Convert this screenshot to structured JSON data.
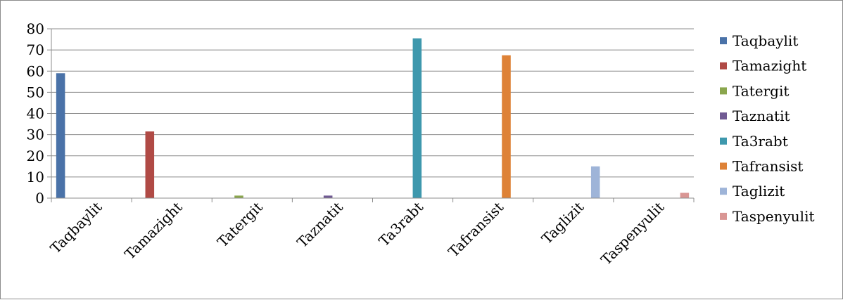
{
  "chart_data": {
    "type": "bar",
    "categories": [
      "Taqbaylit",
      "Tamazight",
      "Tatergit",
      "Taznatit",
      "Ta3rabt",
      "Tafransist",
      "Taglizit",
      "Taspenyulit"
    ],
    "series": [
      {
        "name": "Taqbaylit",
        "color": "#4a72a8",
        "values": [
          59,
          0,
          0,
          0,
          0,
          0,
          0,
          0
        ]
      },
      {
        "name": "Tamazight",
        "color": "#b04a45",
        "values": [
          0,
          31.5,
          0,
          0,
          0,
          0,
          0,
          0
        ]
      },
      {
        "name": "Tatergit",
        "color": "#8aa64d",
        "values": [
          0,
          0,
          1.2,
          0,
          0,
          0,
          0,
          0
        ]
      },
      {
        "name": "Taznatit",
        "color": "#705a93",
        "values": [
          0,
          0,
          0,
          1.2,
          0,
          0,
          0,
          0
        ]
      },
      {
        "name": "Ta3rabt",
        "color": "#3e98ad",
        "values": [
          0,
          0,
          0,
          0,
          75.5,
          0,
          0,
          0
        ]
      },
      {
        "name": "Tafransist",
        "color": "#de8237",
        "values": [
          0,
          0,
          0,
          0,
          0,
          67.5,
          0,
          0
        ]
      },
      {
        "name": "Taglizit",
        "color": "#9eb4d8",
        "values": [
          0,
          0,
          0,
          0,
          0,
          0,
          15,
          0
        ]
      },
      {
        "name": "Taspenyulit",
        "color": "#d99694",
        "values": [
          0,
          0,
          0,
          0,
          0,
          0,
          0,
          2.5
        ]
      }
    ],
    "ylim": [
      0,
      80
    ],
    "yticks": [
      0,
      10,
      20,
      30,
      40,
      50,
      60,
      70,
      80
    ],
    "grid": true,
    "legend": "right"
  }
}
